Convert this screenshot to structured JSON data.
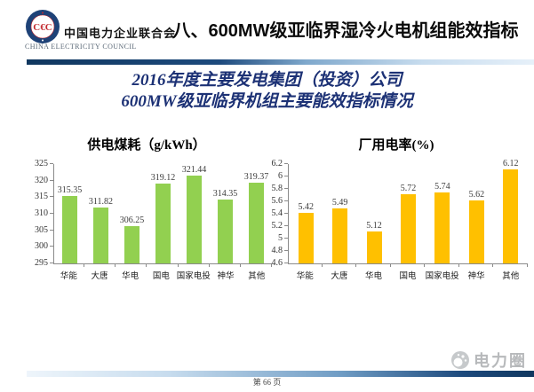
{
  "header": {
    "logo": {
      "org_cn": "中国电力企业联合会",
      "org_en": "CHINA ELECTRICITY COUNCIL",
      "emblem_monogram": "C€C"
    },
    "title": "八、600MW级亚临界湿冷火电机组能效指标"
  },
  "banner": {
    "line1": "2016年度主要发电集团（投资）公司",
    "line2": "600MW级亚临界机组主要能效指标情况"
  },
  "chart_data": [
    {
      "type": "bar",
      "title": "供电煤耗（g/kWh）",
      "categories": [
        "华能",
        "大唐",
        "华电",
        "国电",
        "国家电投",
        "神华",
        "其他"
      ],
      "values": [
        315.35,
        311.82,
        306.25,
        319.12,
        321.44,
        314.35,
        319.37
      ],
      "value_labels": [
        "315.35",
        "311.82",
        "306.25",
        "319.12",
        "321.44",
        "314.35",
        "319.37"
      ],
      "ylim": [
        295,
        325
      ],
      "yticks": [
        295,
        300,
        305,
        310,
        315,
        320,
        325
      ],
      "ytick_labels": [
        "295",
        "300",
        "305",
        "310",
        "315",
        "320",
        "325"
      ],
      "bar_color": "#92d050",
      "grid": false,
      "legend": "none"
    },
    {
      "type": "bar",
      "title": "厂用电率(%)",
      "categories": [
        "华能",
        "大唐",
        "华电",
        "国电",
        "国家电投",
        "神华",
        "其他"
      ],
      "values": [
        5.42,
        5.49,
        5.12,
        5.72,
        5.74,
        5.62,
        6.12
      ],
      "value_labels": [
        "5.42",
        "5.49",
        "5.12",
        "5.72",
        "5.74",
        "5.62",
        "6.12"
      ],
      "ylim": [
        4.6,
        6.2
      ],
      "yticks": [
        4.6,
        4.8,
        5,
        5.2,
        5.4,
        5.6,
        5.8,
        6,
        6.2
      ],
      "ytick_labels": [
        "4.6",
        "4.8",
        "5",
        "5.2",
        "5.4",
        "5.6",
        "5.8",
        "6",
        "6.2"
      ],
      "bar_color": "#ffc000",
      "grid": false,
      "legend": "none"
    }
  ],
  "footer": {
    "page_label": "第 66 页",
    "watermark": "电力圈"
  },
  "colors": {
    "coal_bar": "#92d050",
    "power_bar": "#ffc000",
    "banner_text": "#1c3175",
    "rule_dark": "#10375f",
    "rule_light": "#e6f0f9",
    "emblem_ring": "#1e4277",
    "emblem_red": "#c2272d",
    "watermark_gray": "#b7b9bb"
  }
}
